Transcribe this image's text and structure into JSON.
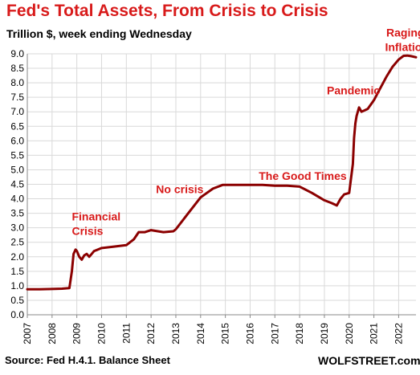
{
  "chart_data": {
    "type": "line",
    "title": "Fed's Total Assets, From Crisis to Crisis",
    "subtitle": "Trillion $, week ending Wednesday",
    "source": "Source: Fed H.4.1. Balance Sheet",
    "brand": "WOLFSTREET.com",
    "xlim": [
      2007.0,
      2022.7
    ],
    "ylim": [
      0.0,
      9.0
    ],
    "x_ticks": [
      "2007",
      "2008",
      "2009",
      "2010",
      "2011",
      "2012",
      "2013",
      "2014",
      "2015",
      "2016",
      "2017",
      "2018",
      "2019",
      "2020",
      "2021",
      "2022"
    ],
    "y_ticks": [
      "0.0",
      "0.5",
      "1.0",
      "1.5",
      "2.0",
      "2.5",
      "3.0",
      "3.5",
      "4.0",
      "4.5",
      "5.0",
      "5.5",
      "6.0",
      "6.5",
      "7.0",
      "7.5",
      "8.0",
      "8.5",
      "9.0"
    ],
    "grid": true,
    "series": [
      {
        "color": "#8b0000",
        "x": [
          2007.0,
          2007.5,
          2008.0,
          2008.4,
          2008.7,
          2008.8,
          2008.87,
          2008.95,
          2009.0,
          2009.1,
          2009.2,
          2009.3,
          2009.4,
          2009.5,
          2009.6,
          2009.7,
          2009.85,
          2010.0,
          2010.5,
          2011.0,
          2011.3,
          2011.5,
          2011.75,
          2012.0,
          2012.5,
          2012.9,
          2013.0,
          2013.5,
          2014.0,
          2014.5,
          2014.9,
          2015.5,
          2016.0,
          2016.5,
          2017.0,
          2017.5,
          2018.0,
          2018.5,
          2019.0,
          2019.3,
          2019.5,
          2019.65,
          2019.8,
          2020.0,
          2020.15,
          2020.2,
          2020.25,
          2020.3,
          2020.4,
          2020.5,
          2020.75,
          2021.0,
          2021.25,
          2021.5,
          2021.75,
          2022.0,
          2022.2,
          2022.35,
          2022.5,
          2022.7
        ],
        "y": [
          0.88,
          0.88,
          0.89,
          0.9,
          0.92,
          1.5,
          2.1,
          2.25,
          2.2,
          2.0,
          1.9,
          2.05,
          2.1,
          2.0,
          2.1,
          2.2,
          2.25,
          2.3,
          2.35,
          2.4,
          2.6,
          2.85,
          2.85,
          2.92,
          2.85,
          2.88,
          2.95,
          3.5,
          4.05,
          4.35,
          4.48,
          4.48,
          4.48,
          4.48,
          4.45,
          4.45,
          4.42,
          4.2,
          3.95,
          3.85,
          3.77,
          4.0,
          4.15,
          4.2,
          5.2,
          6.1,
          6.6,
          6.85,
          7.15,
          7.0,
          7.1,
          7.4,
          7.8,
          8.2,
          8.55,
          8.8,
          8.93,
          8.94,
          8.92,
          8.88
        ]
      }
    ],
    "annotations": [
      {
        "text": "Financial",
        "x": 2008.8,
        "y": 3.25
      },
      {
        "text": "Crisis",
        "x": 2008.8,
        "y": 2.75
      },
      {
        "text": "No crisis",
        "x": 2012.2,
        "y": 4.2
      },
      {
        "text": "The Good Times",
        "x": 2016.35,
        "y": 4.65
      },
      {
        "text": "Pandemic",
        "x": 2019.1,
        "y": 7.6
      },
      {
        "text": "Raging",
        "x": 2021.5,
        "y": 9.6
      },
      {
        "text": "Inflation",
        "x": 2021.45,
        "y": 9.1
      }
    ]
  }
}
